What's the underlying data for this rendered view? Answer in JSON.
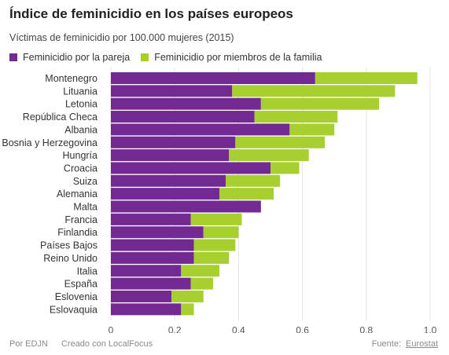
{
  "title": "Índice de feminicidio en los países europeos",
  "subtitle": "Víctimas de feminicidio por 100.000 mujeres (2015)",
  "footer": {
    "by": "Por EDJN",
    "created": "Creado con LocalFocus",
    "source_label": "Fuente:",
    "source_link": "Eurostat"
  },
  "chart_data": {
    "type": "bar",
    "orientation": "horizontal",
    "stacked": true,
    "categories": [
      "Montenegro",
      "Lituania",
      "Letonia",
      "República Checa",
      "Albania",
      "Bosnia y Herzegovina",
      "Hungría",
      "Croacia",
      "Suiza",
      "Alemania",
      "Malta",
      "Francia",
      "Finlandia",
      "Países Bajos",
      "Reino Unido",
      "Italia",
      "España",
      "Eslovenia",
      "Eslovaquia"
    ],
    "series": [
      {
        "name": "Feminicidio por la pareja",
        "color": "#722a92",
        "values": [
          0.64,
          0.38,
          0.47,
          0.45,
          0.56,
          0.39,
          0.37,
          0.5,
          0.36,
          0.34,
          0.47,
          0.25,
          0.29,
          0.26,
          0.26,
          0.22,
          0.25,
          0.19,
          0.22
        ]
      },
      {
        "name": "Feminicidio por miembros de la familia",
        "color": "#a6cf2f",
        "values": [
          0.32,
          0.51,
          0.37,
          0.26,
          0.14,
          0.28,
          0.25,
          0.09,
          0.17,
          0.17,
          0.0,
          0.16,
          0.11,
          0.13,
          0.11,
          0.12,
          0.07,
          0.1,
          0.04
        ]
      }
    ],
    "xticks": [
      "0",
      "0,2",
      "0,4",
      "0,6",
      "0,8",
      "1,0"
    ],
    "xlim": [
      0,
      1.0
    ],
    "grid": true,
    "legend_position": "top-left"
  }
}
